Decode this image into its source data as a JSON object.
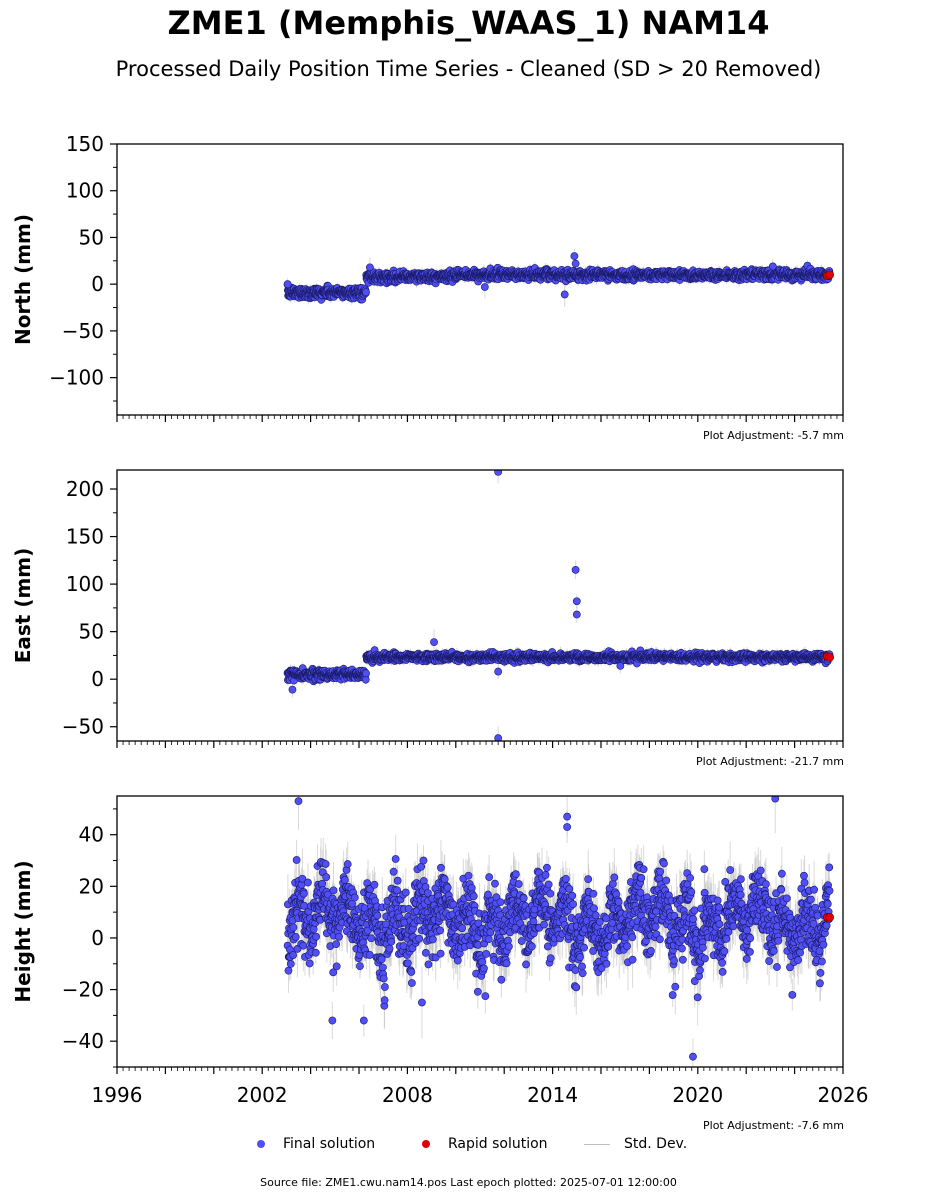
{
  "title": "ZME1 (Memphis_WAAS_1) NAM14",
  "subtitle": "Processed Daily Position Time Series - Cleaned (SD > 20 Removed)",
  "legend": {
    "final": "Final solution",
    "rapid": "Rapid solution",
    "std": "Std. Dev."
  },
  "source_note": "Source file: ZME1.cwu.nam14.pos  Last epoch plotted: 2025-07-01 12:00:00",
  "colors": {
    "final": "#4f4ff5",
    "final_edge": "#1a1a66",
    "rapid": "#e00000",
    "std": "#bfbfbf"
  },
  "chart_data": [
    {
      "type": "scatter",
      "ylabel": "North (mm)",
      "adjustment": "Plot Adjustment: -5.7 mm",
      "xlim": [
        1996,
        2026
      ],
      "ylim": [
        -140,
        150
      ],
      "yticks": [
        -100,
        -50,
        0,
        50,
        100,
        150
      ],
      "ytick_labels": [
        "−100",
        "−50",
        "0",
        "50",
        "100",
        "150"
      ],
      "show_xtick_labels": false,
      "final_segments": [
        {
          "x0": 2003.05,
          "x1": 2006.3,
          "mean": -9,
          "sd": 3
        },
        {
          "x0": 2006.3,
          "x1": 2010.0,
          "mean": 8,
          "sd": 2.5
        },
        {
          "x0": 2010.0,
          "x1": 2025.45,
          "mean": 10,
          "sd": 2.5
        }
      ],
      "outliers": [
        {
          "x": 2014.9,
          "y": 30
        },
        {
          "x": 2014.95,
          "y": 22
        },
        {
          "x": 2014.5,
          "y": -11
        },
        {
          "x": 2011.2,
          "y": -3
        },
        {
          "x": 2023.1,
          "y": 19
        },
        {
          "x": 2003.05,
          "y": 0
        },
        {
          "x": 2006.45,
          "y": 18
        }
      ],
      "rapid": [
        {
          "x": 2025.35,
          "y": 9
        },
        {
          "x": 2025.45,
          "y": 10
        }
      ]
    },
    {
      "type": "scatter",
      "ylabel": "East (mm)",
      "adjustment": "Plot Adjustment: -21.7 mm",
      "xlim": [
        1996,
        2026
      ],
      "ylim": [
        -65,
        220
      ],
      "yticks": [
        -50,
        0,
        50,
        100,
        150,
        200
      ],
      "ytick_labels": [
        "−50",
        "0",
        "50",
        "100",
        "150",
        "200"
      ],
      "show_xtick_labels": false,
      "final_segments": [
        {
          "x0": 2003.05,
          "x1": 2006.3,
          "mean": 5,
          "sd": 2.5
        },
        {
          "x0": 2006.3,
          "x1": 2025.45,
          "mean": 23,
          "sd": 2
        }
      ],
      "outliers": [
        {
          "x": 2011.75,
          "y": 218
        },
        {
          "x": 2011.75,
          "y": -62
        },
        {
          "x": 2011.75,
          "y": 8
        },
        {
          "x": 2014.95,
          "y": 115
        },
        {
          "x": 2015.0,
          "y": 82
        },
        {
          "x": 2015.0,
          "y": 68
        },
        {
          "x": 2009.1,
          "y": 39
        },
        {
          "x": 2003.25,
          "y": -11
        },
        {
          "x": 2016.8,
          "y": 14
        }
      ],
      "rapid": [
        {
          "x": 2025.35,
          "y": 24
        },
        {
          "x": 2025.45,
          "y": 23
        }
      ]
    },
    {
      "type": "scatter",
      "ylabel": "Height (mm)",
      "adjustment": "Plot Adjustment: -7.6 mm",
      "xlim": [
        1996,
        2026
      ],
      "ylim": [
        -50,
        55
      ],
      "yticks": [
        -40,
        -20,
        0,
        20,
        40
      ],
      "ytick_labels": [
        "−40",
        "−20",
        "0",
        "20",
        "40"
      ],
      "xticks": [
        1996,
        2002,
        2008,
        2014,
        2020,
        2026
      ],
      "show_xtick_labels": true,
      "final_segments": [
        {
          "x0": 2003.05,
          "x1": 2025.45,
          "mean": 7,
          "sd": 9,
          "seasonal_amp": 7
        }
      ],
      "outliers": [
        {
          "x": 2003.5,
          "y": 53
        },
        {
          "x": 2023.2,
          "y": 54
        },
        {
          "x": 2019.8,
          "y": -46
        },
        {
          "x": 2004.9,
          "y": -32
        },
        {
          "x": 2006.2,
          "y": -32
        },
        {
          "x": 2008.6,
          "y": -25
        },
        {
          "x": 2014.6,
          "y": 47
        },
        {
          "x": 2014.6,
          "y": 43
        }
      ],
      "rapid": [
        {
          "x": 2025.35,
          "y": 8
        },
        {
          "x": 2025.45,
          "y": 8
        }
      ]
    }
  ]
}
